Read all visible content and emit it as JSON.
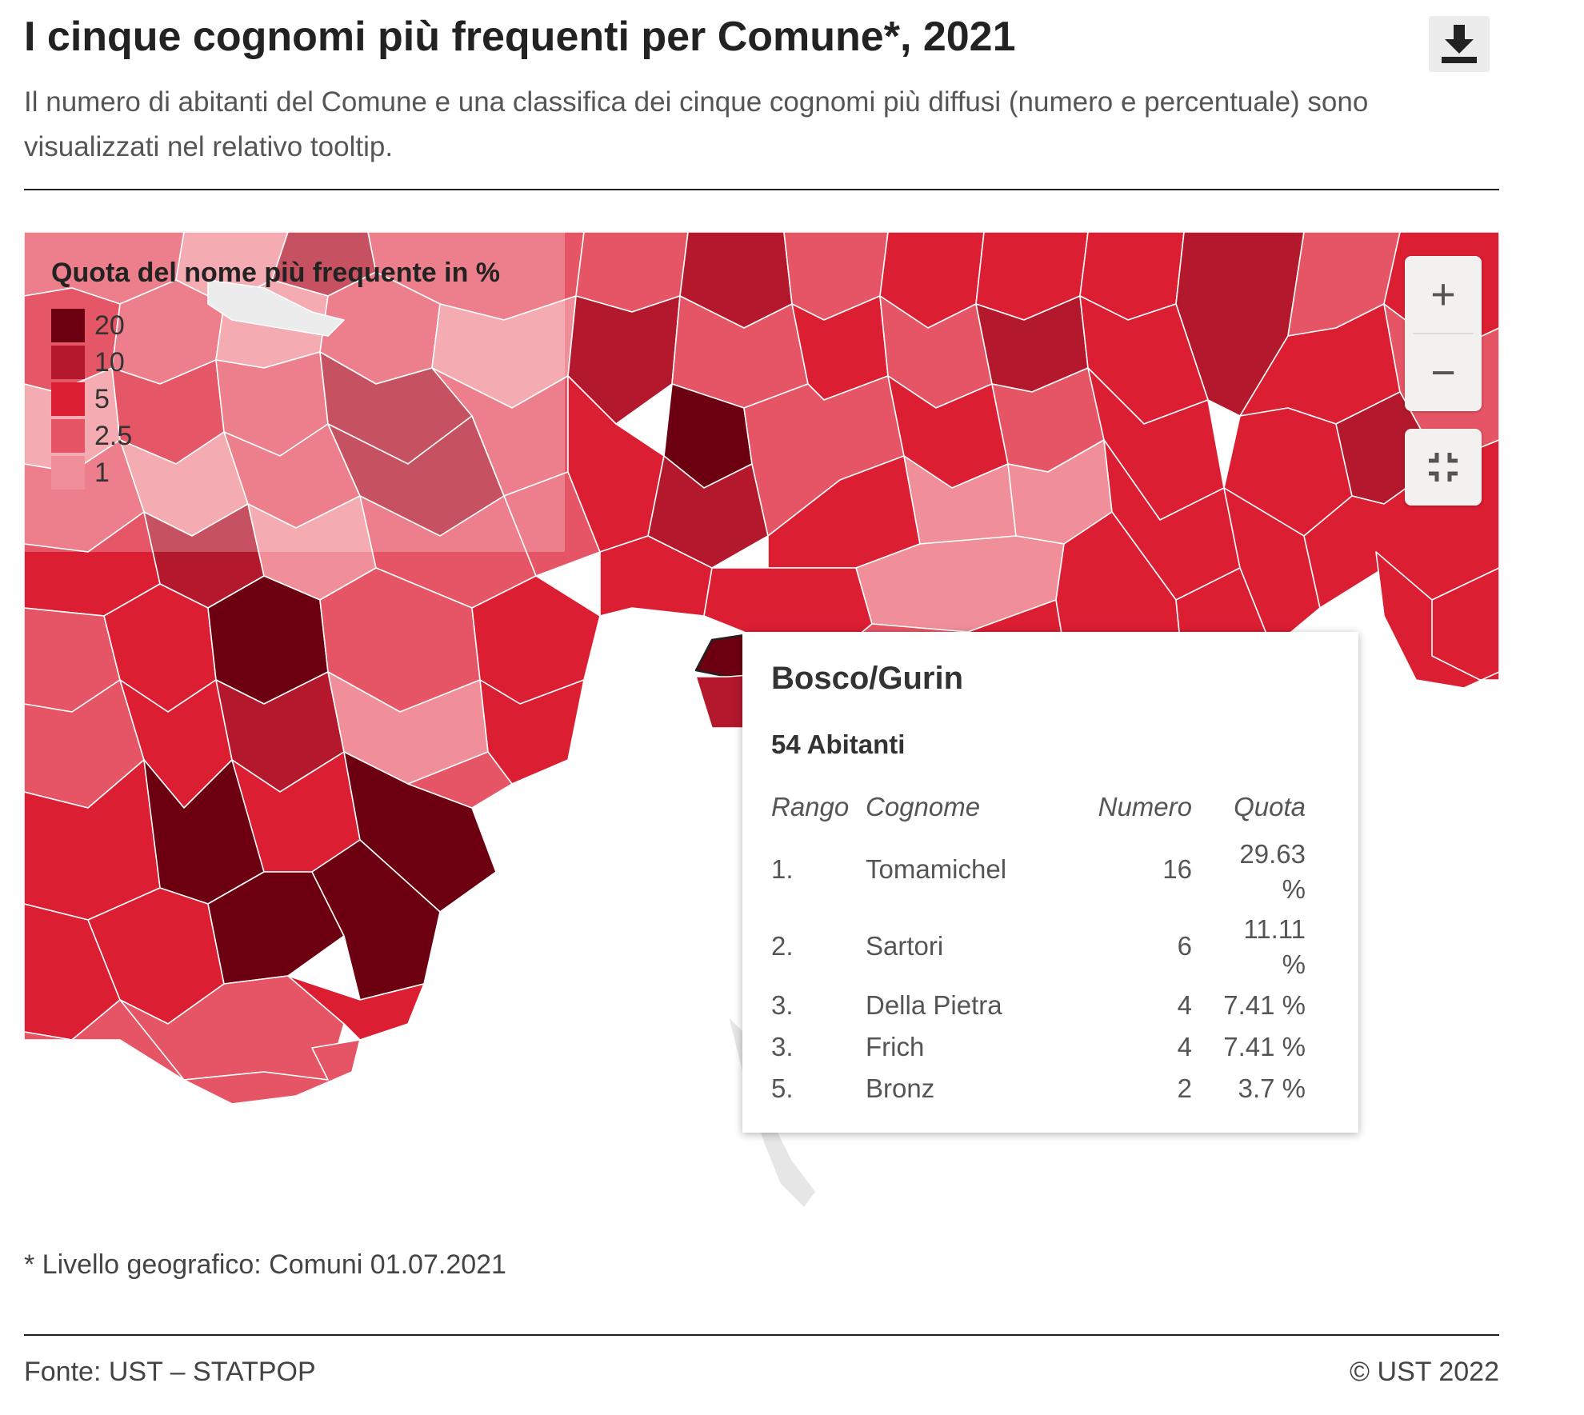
{
  "header": {
    "title": "I cinque cognomi più frequenti per Comune*, 2021",
    "subtitle": "Il numero di abitanti del Comune e una classifica dei cinque cognomi più diffusi (numero e percentuale) sono visualizzati nel relativo tooltip.",
    "download_icon": "download-icon"
  },
  "legend": {
    "title": "Quota del nome più frequente in %",
    "items": [
      {
        "label": "20",
        "color": "#6d0010"
      },
      {
        "label": "10",
        "color": "#b3182c"
      },
      {
        "label": "5",
        "color": "#dc1e33"
      },
      {
        "label": "2.5",
        "color": "#e65565"
      },
      {
        "label": "1",
        "color": "#f08f99"
      }
    ]
  },
  "controls": {
    "zoom_in": "+",
    "zoom_out": "−",
    "fullscreen_icon": "fullscreen-exit-icon"
  },
  "tooltip": {
    "name": "Bosco/Gurin",
    "population": "54 Abitanti",
    "headers": {
      "rank": "Rango",
      "surname": "Cognome",
      "count": "Numero",
      "share": "Quota"
    },
    "rows": [
      {
        "rank": "1.",
        "surname": "Tomamichel",
        "count": "16",
        "share": "29.63 %"
      },
      {
        "rank": "2.",
        "surname": "Sartori",
        "count": "6",
        "share": "11.11 %"
      },
      {
        "rank": "3.",
        "surname": "Della Pietra",
        "count": "4",
        "share": "7.41 %"
      },
      {
        "rank": "3.",
        "surname": "Frich",
        "count": "4",
        "share": "7.41 %"
      },
      {
        "rank": "5.",
        "surname": "Bronz",
        "count": "2",
        "share": "3.7 %"
      }
    ]
  },
  "footer": {
    "footnote": "* Livello geografico: Comuni 01.07.2021",
    "source": "Fonte: UST – STATPOP",
    "copyright": "© UST 2022"
  },
  "colors": {
    "accent": "#dc001e",
    "darkest": "#6d0010",
    "lake": "#e6e6e6"
  }
}
